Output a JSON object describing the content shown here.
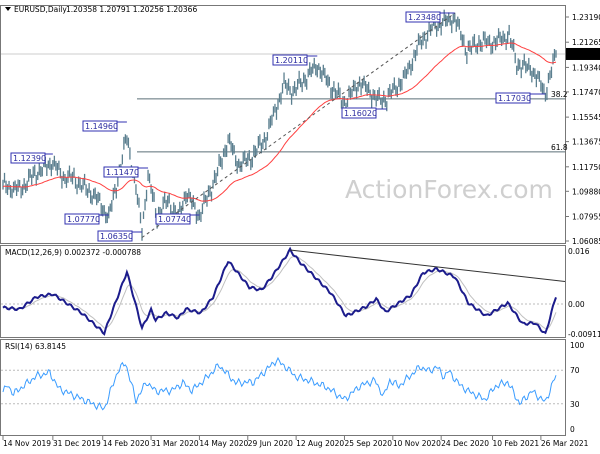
{
  "header": {
    "symbol": "EURUSD,Daily",
    "ohlc": "1.20358 1.20791 1.20256 1.20366"
  },
  "watermark": "ActionForex.com",
  "colors": {
    "bars": "#5b7f8f",
    "ma": "#ff4040",
    "macd": "#1c1c8c",
    "signal": "#c0c0c0",
    "rsi": "#3a9cff",
    "annotation_border": "#3030b0",
    "price_box": "#000000"
  },
  "chart_data": [
    {
      "type": "bar",
      "title": "EURUSD,Daily",
      "price_ticks": [
        "1.23190",
        "1.21265",
        "1.19340",
        "1.17470",
        "1.15545",
        "1.13675",
        "1.11750",
        "1.09880",
        "1.07955",
        "1.06085"
      ],
      "ylim": [
        1.06085,
        1.2319
      ],
      "current_price": "1.20366",
      "date_ticks": [
        "14 Nov 2019",
        "31 Dec 2019",
        "14 Feb 2020",
        "31 Mar 2020",
        "14 May 2020",
        "29 Jun 2020",
        "12 Aug 2020",
        "25 Sep 2020",
        "10 Nov 2020",
        "24 Dec 2020",
        "10 Feb 2021",
        "26 Mar 2021"
      ],
      "date_tick_dates": [
        "2019-11-14",
        "2019-12-31",
        "2020-02-14",
        "2020-03-31",
        "2020-05-14",
        "2020-06-29",
        "2020-08-12",
        "2020-09-25",
        "2020-11-10",
        "2020-12-24",
        "2021-02-10",
        "2021-03-26"
      ],
      "close_path": [
        [
          "2019-11-14",
          1.103
        ],
        [
          "2019-11-29",
          1.1
        ],
        [
          "2019-12-13",
          1.112
        ],
        [
          "2019-12-31",
          1.121
        ],
        [
          "2020-01-08",
          1.11
        ],
        [
          "2020-01-17",
          1.109
        ],
        [
          "2020-02-07",
          1.095
        ],
        [
          "2020-02-20",
          1.079
        ],
        [
          "2020-03-02",
          1.113
        ],
        [
          "2020-03-09",
          1.141
        ],
        [
          "2020-03-17",
          1.1
        ],
        [
          "2020-03-23",
          1.07
        ],
        [
          "2020-03-27",
          1.11
        ],
        [
          "2020-04-06",
          1.08
        ],
        [
          "2020-04-15",
          1.092
        ],
        [
          "2020-04-24",
          1.078
        ],
        [
          "2020-05-01",
          1.098
        ],
        [
          "2020-05-14",
          1.08
        ],
        [
          "2020-05-29",
          1.11
        ],
        [
          "2020-06-10",
          1.138
        ],
        [
          "2020-06-19",
          1.119
        ],
        [
          "2020-07-01",
          1.124
        ],
        [
          "2020-07-15",
          1.14
        ],
        [
          "2020-07-31",
          1.18
        ],
        [
          "2020-08-10",
          1.175
        ],
        [
          "2020-09-01",
          1.195
        ],
        [
          "2020-09-10",
          1.182
        ],
        [
          "2020-09-25",
          1.166
        ],
        [
          "2020-10-09",
          1.182
        ],
        [
          "2020-10-28",
          1.168
        ],
        [
          "2020-11-04",
          1.17
        ],
        [
          "2020-11-20",
          1.186
        ],
        [
          "2020-12-04",
          1.212
        ],
        [
          "2020-12-17",
          1.225
        ],
        [
          "2021-01-06",
          1.231
        ],
        [
          "2021-01-18",
          1.206
        ],
        [
          "2021-01-29",
          1.213
        ],
        [
          "2021-02-10",
          1.212
        ],
        [
          "2021-02-25",
          1.218
        ],
        [
          "2021-03-04",
          1.196
        ],
        [
          "2021-03-18",
          1.192
        ],
        [
          "2021-03-31",
          1.174
        ],
        [
          "2021-04-09",
          1.2037
        ]
      ],
      "moving_average": "red line",
      "annotations": [
        {
          "text": "1.12390",
          "date": "2019-12-31",
          "price": 1.1239
        },
        {
          "text": "1.14960",
          "date": "2020-03-09",
          "price": 1.1496
        },
        {
          "text": "1.11470",
          "date": "2020-03-27",
          "price": 1.1147
        },
        {
          "text": "1.07770",
          "date": "2020-02-20",
          "price": 1.0777
        },
        {
          "text": "1.06350",
          "date": "2020-03-23",
          "price": 1.0635
        },
        {
          "text": "1.07740",
          "date": "2020-05-14",
          "price": 1.0774
        },
        {
          "text": "1.20110",
          "date": "2020-09-01",
          "price": 1.2011
        },
        {
          "text": "1.16020",
          "date": "2020-11-04",
          "price": 1.1602
        },
        {
          "text": "1.23480",
          "date": "2021-01-06",
          "price": 1.2348
        },
        {
          "text": "1.17030",
          "date": "2021-03-31",
          "price": 1.1703
        }
      ],
      "fib_levels": [
        {
          "label": "38.2",
          "price": 1.1694
        },
        {
          "label": "61.8",
          "price": 1.1289
        }
      ],
      "trendline": {
        "from": [
          "2020-03-23",
          1.0635
        ],
        "to": [
          "2021-01-06",
          1.2348
        ],
        "style": "dashed"
      }
    },
    {
      "type": "line",
      "title": "MACD(12,26,9) 0.002372 -0.000788",
      "ticks": [
        "0.016",
        "0.00",
        "-0.009116"
      ],
      "current_label": "0.00",
      "macd_path": [
        [
          "2019-11-14",
          -0.0011
        ],
        [
          "2019-11-29",
          -0.0016
        ],
        [
          "2019-12-16",
          0.0021
        ],
        [
          "2019-12-31",
          0.003
        ],
        [
          "2020-01-27",
          -0.0027
        ],
        [
          "2020-02-17",
          -0.0088
        ],
        [
          "2020-03-09",
          0.0097
        ],
        [
          "2020-03-23",
          -0.0073
        ],
        [
          "2020-03-31",
          -0.0018
        ],
        [
          "2020-04-03",
          -0.0048
        ],
        [
          "2020-04-14",
          -0.0027
        ],
        [
          "2020-04-24",
          -0.0042
        ],
        [
          "2020-05-01",
          -0.0015
        ],
        [
          "2020-05-15",
          -0.0027
        ],
        [
          "2020-05-27",
          0.0021
        ],
        [
          "2020-06-10",
          0.013
        ],
        [
          "2020-06-30",
          0.0051
        ],
        [
          "2020-07-10",
          0.0042
        ],
        [
          "2020-07-21",
          0.0082
        ],
        [
          "2020-08-06",
          0.0163
        ],
        [
          "2020-08-17",
          0.0124
        ],
        [
          "2020-08-31",
          0.0079
        ],
        [
          "2020-09-14",
          0.0033
        ],
        [
          "2020-09-28",
          -0.0036
        ],
        [
          "2020-10-15",
          -0.0009
        ],
        [
          "2020-10-26",
          0.0015
        ],
        [
          "2020-11-03",
          -0.0024
        ],
        [
          "2020-11-26",
          0.0027
        ],
        [
          "2020-12-08",
          0.0094
        ],
        [
          "2020-12-21",
          0.0106
        ],
        [
          "2021-01-06",
          0.0082
        ],
        [
          "2021-01-19",
          0.0003
        ],
        [
          "2021-02-04",
          -0.0036
        ],
        [
          "2021-02-24",
          0.0003
        ],
        [
          "2021-03-10",
          -0.006
        ],
        [
          "2021-03-22",
          -0.0057
        ],
        [
          "2021-03-31",
          -0.0091
        ],
        [
          "2021-04-09",
          0.0024
        ]
      ],
      "signal": "grey line",
      "trendline": {
        "from": [
          "2020-08-06",
          0.0163
        ],
        "to": [
          "2021-04-09",
          0.0068
        ]
      }
    },
    {
      "type": "line",
      "title": "RSI(14) 63.8145",
      "ticks": [
        "100",
        "70",
        "30",
        "0"
      ],
      "levels": [
        70,
        30
      ],
      "rsi_path": [
        [
          "2019-11-14",
          44
        ],
        [
          "2019-11-19",
          52
        ],
        [
          "2019-11-25",
          42
        ],
        [
          "2019-12-16",
          63
        ],
        [
          "2019-12-27",
          67
        ],
        [
          "2020-01-06",
          48
        ],
        [
          "2020-01-28",
          35
        ],
        [
          "2020-02-17",
          24
        ],
        [
          "2020-02-28",
          69
        ],
        [
          "2020-03-06",
          79
        ],
        [
          "2020-03-17",
          34
        ],
        [
          "2020-03-26",
          56
        ],
        [
          "2020-04-03",
          45
        ],
        [
          "2020-04-20",
          46
        ],
        [
          "2020-04-29",
          55
        ],
        [
          "2020-05-07",
          46
        ],
        [
          "2020-05-19",
          58
        ],
        [
          "2020-06-02",
          76
        ],
        [
          "2020-06-17",
          55
        ],
        [
          "2020-07-03",
          56
        ],
        [
          "2020-07-24",
          82
        ],
        [
          "2020-08-03",
          74
        ],
        [
          "2020-08-12",
          62
        ],
        [
          "2020-08-24",
          58
        ],
        [
          "2020-09-09",
          50
        ],
        [
          "2020-09-25",
          35
        ],
        [
          "2020-10-09",
          51
        ],
        [
          "2020-10-23",
          58
        ],
        [
          "2020-11-02",
          39
        ],
        [
          "2020-11-06",
          58
        ],
        [
          "2020-11-16",
          51
        ],
        [
          "2020-12-04",
          74
        ],
        [
          "2020-12-14",
          69
        ],
        [
          "2020-12-21",
          74
        ],
        [
          "2020-12-28",
          62
        ],
        [
          "2020-12-31",
          69
        ],
        [
          "2021-01-11",
          53
        ],
        [
          "2021-01-19",
          45
        ],
        [
          "2021-02-03",
          35
        ],
        [
          "2021-02-12",
          51
        ],
        [
          "2021-02-24",
          56
        ],
        [
          "2021-03-08",
          30
        ],
        [
          "2021-03-18",
          45
        ],
        [
          "2021-03-31",
          32
        ],
        [
          "2021-04-06",
          51
        ],
        [
          "2021-04-09",
          64
        ]
      ]
    }
  ]
}
